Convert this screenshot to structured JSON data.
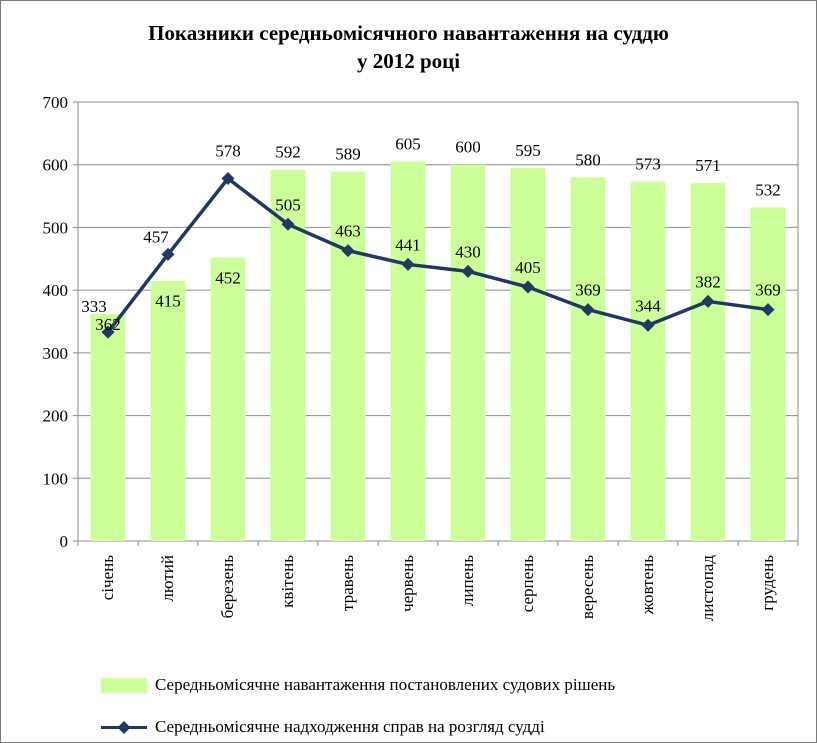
{
  "chart_data": {
    "type": "bar",
    "title_lines": [
      "Показники середньомісячного навантаження на суддю",
      "у 2012 році"
    ],
    "categories": [
      "січень",
      "лютий",
      "березень",
      "квітень",
      "травень",
      "червень",
      "липень",
      "серпень",
      "вересень",
      "жовтень",
      "листопад",
      "грудень"
    ],
    "series": [
      {
        "name": "Середньомісячне навантаження постановлених судових рішень",
        "type": "bar",
        "color": "#ccff99",
        "values": [
          362,
          415,
          452,
          592,
          589,
          605,
          600,
          595,
          580,
          573,
          571,
          532
        ]
      },
      {
        "name": "Середньомісячне надходження справ на розгляд судді",
        "type": "line",
        "color": "#1f3864",
        "marker": "diamond",
        "values": [
          333,
          457,
          578,
          505,
          463,
          441,
          430,
          405,
          369,
          344,
          382,
          369
        ]
      }
    ],
    "ylim": [
      0,
      700
    ],
    "yticks": [
      0,
      100,
      200,
      300,
      400,
      500,
      600,
      700
    ],
    "grid": true,
    "legend_position": "bottom"
  }
}
